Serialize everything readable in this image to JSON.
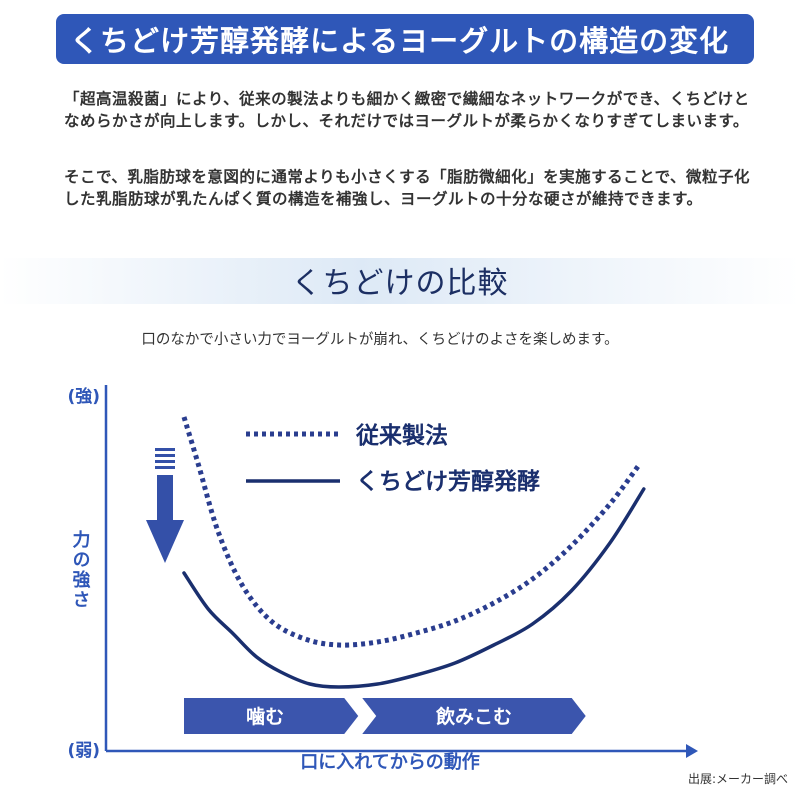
{
  "header": {
    "title": "くちどけ芳醇発酵によるヨーグルトの構造の変化"
  },
  "body_text": {
    "paragraph1": "「超高温殺菌」により、従来の製法よりも細かく緻密で繊細なネットワークができ、くちどけとなめらかさが向上します。しかし、それだけではヨーグルトが柔らかくなりすぎてしまいます。",
    "paragraph2": "そこで、乳脂肪球を意図的に通常よりも小さくする「脂肪微細化」を実施することで、微粒子化した乳脂肪球が乳たんぱく質の構造を補強し、ヨーグルトの十分な硬さが維持できます。"
  },
  "section": {
    "title": "くちどけの比較",
    "caption": "口のなかで小さい力でヨーグルトが崩れ、くちどけのよさを楽しめます。"
  },
  "chart_data": {
    "type": "line",
    "xlabel": "口に入れてからの動作",
    "ylabel": "力の強さ",
    "y_top_label": "(強)",
    "y_bottom_label": "(弱)",
    "x_range": [
      0,
      100
    ],
    "y_range": [
      0,
      100
    ],
    "grid": false,
    "legend_position": "top-center",
    "series": [
      {
        "name": "従来製法",
        "style": "dotted",
        "x": [
          0,
          3,
          7,
          12,
          18,
          25,
          32,
          40,
          48,
          56,
          64,
          72,
          80,
          88,
          94
        ],
        "y": [
          96,
          80,
          58,
          40,
          28,
          22,
          20,
          21,
          24,
          28,
          34,
          42,
          53,
          67,
          80
        ]
      },
      {
        "name": "くちどけ芳醇発酵",
        "style": "solid",
        "x": [
          0,
          5,
          10,
          15,
          20,
          26,
          32,
          40,
          48,
          56,
          64,
          72,
          80,
          88,
          95
        ],
        "y": [
          44,
          32,
          24,
          16,
          11,
          7,
          6,
          7,
          10,
          14,
          20,
          27,
          38,
          54,
          72
        ]
      }
    ],
    "phases": [
      {
        "label": "噛む",
        "x_start": 0,
        "x_end": 36
      },
      {
        "label": "飲みこむ",
        "x_start": 36,
        "x_end": 83
      }
    ],
    "colors": {
      "axis": "#2f57b8",
      "line": "#1a2f6e",
      "dotted": "#2a3d8f",
      "phase_fill": "#3b55ad",
      "arrow": "#3450a8"
    }
  },
  "source": "出展:メーカー調べ"
}
